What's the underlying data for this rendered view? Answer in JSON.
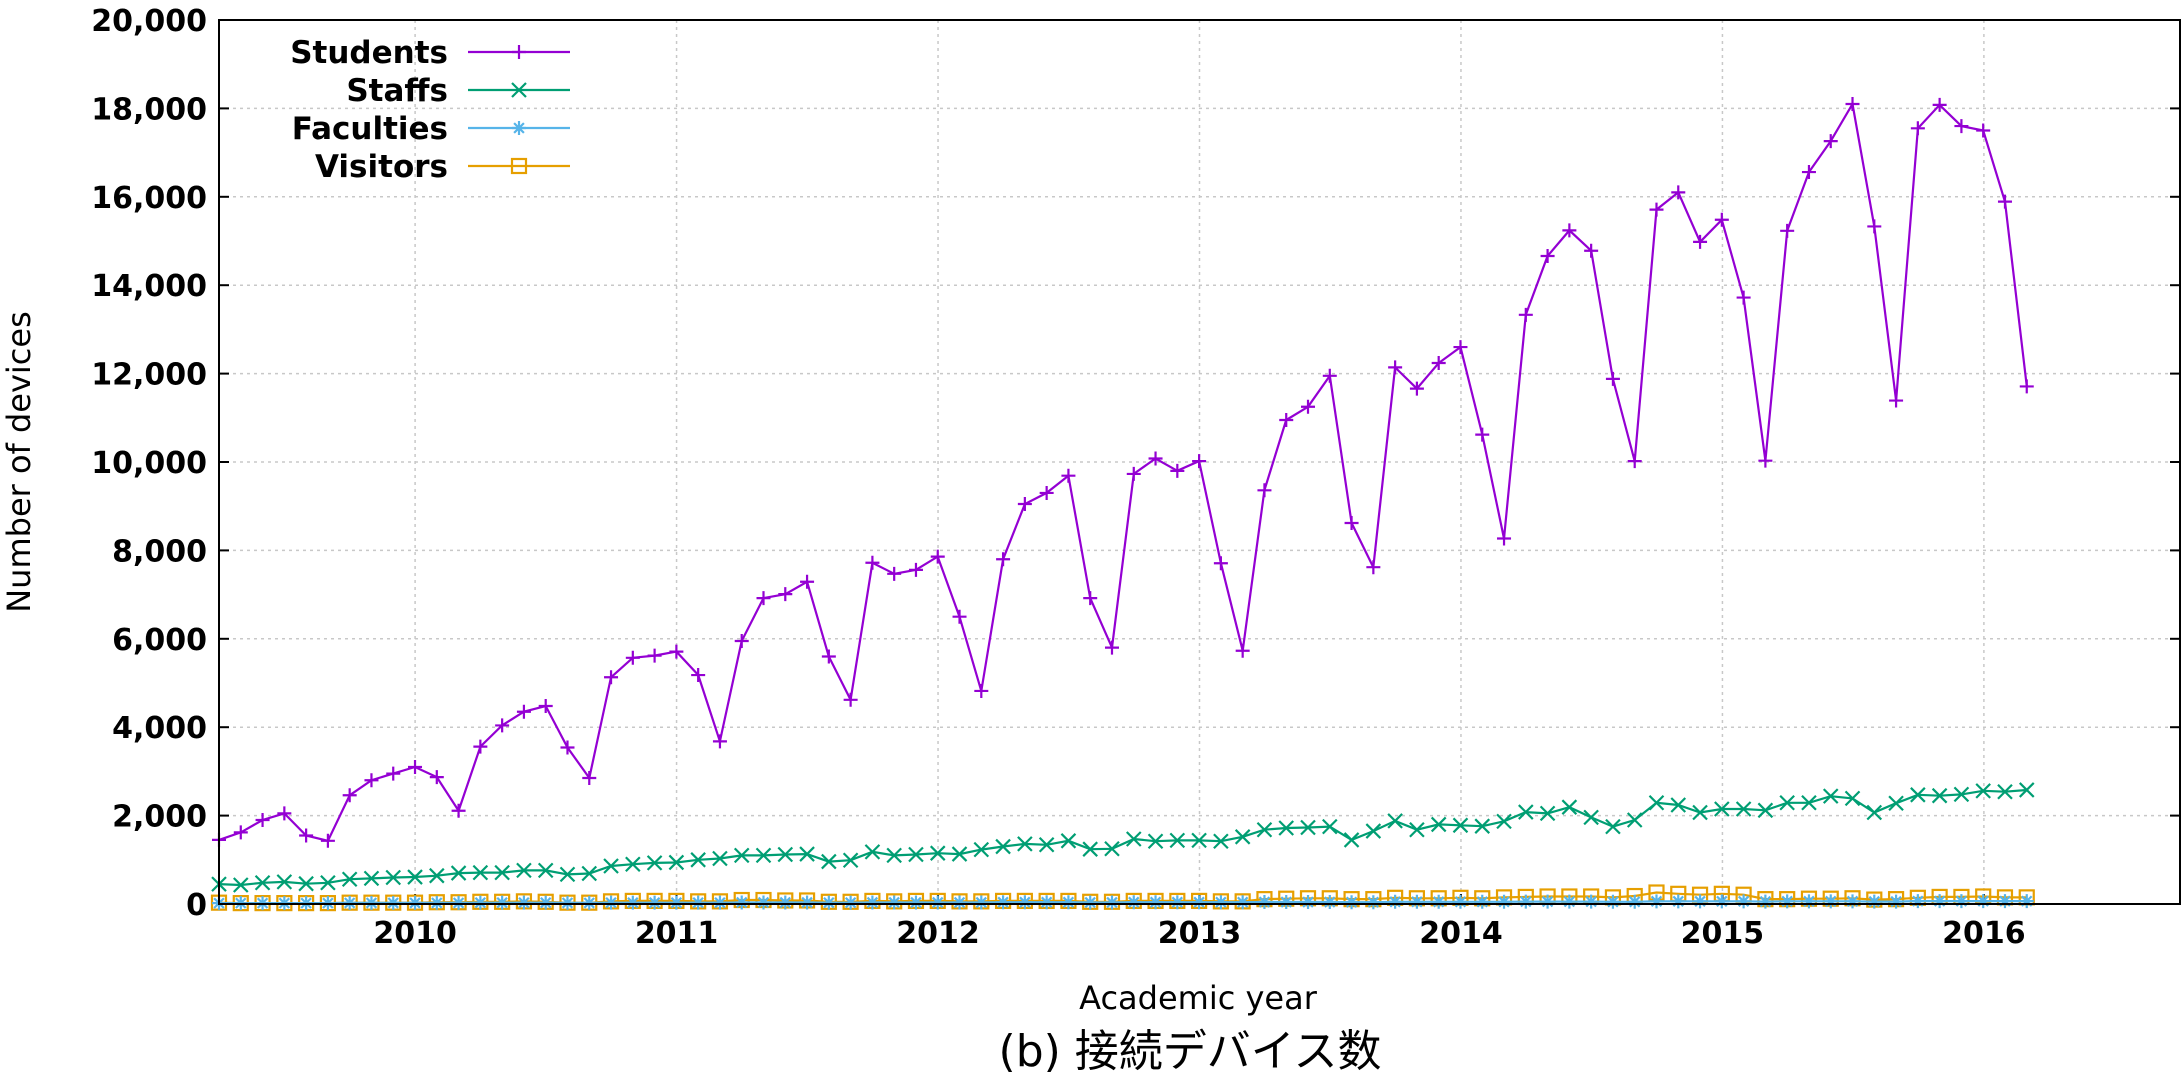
{
  "caption": "(b) 接続デバイス数",
  "chart_data": {
    "type": "line",
    "title": "",
    "xlabel": "Academic year",
    "ylabel": "Number of devices",
    "x_ticks": [
      "2010",
      "2011",
      "2012",
      "2013",
      "2014",
      "2015",
      "2016"
    ],
    "y_ticks": [
      "0",
      "2,000",
      "4,000",
      "6,000",
      "8,000",
      "10,000",
      "12,000",
      "14,000",
      "16,000",
      "18,000",
      "20,000"
    ],
    "xlim": [
      2009.25,
      2016.75
    ],
    "ylim": [
      0,
      20000
    ],
    "grid": true,
    "legend_position": "top-left",
    "x_start": 2009.25,
    "x_step": 0.0833,
    "series": [
      {
        "name": "Students",
        "color": "#9400d3",
        "marker": "plus",
        "values": [
          1450,
          1620,
          1900,
          2050,
          1550,
          1430,
          2460,
          2800,
          2950,
          3100,
          2870,
          2110,
          3560,
          4040,
          4350,
          4480,
          3540,
          2850,
          5130,
          5570,
          5620,
          5710,
          5180,
          3680,
          5950,
          6920,
          7010,
          7290,
          5600,
          4620,
          7720,
          7470,
          7560,
          7860,
          6500,
          4820,
          7800,
          9050,
          9300,
          9690,
          6920,
          5800,
          9730,
          10080,
          9800,
          10020,
          7710,
          5730,
          9360,
          10950,
          11250,
          11950,
          8620,
          7620,
          12140,
          11660,
          12240,
          12600,
          10620,
          8270,
          13330,
          14660,
          15240,
          14780,
          11880,
          10020,
          15710,
          16100,
          14980,
          15480,
          13720,
          10030,
          15230,
          16560,
          17260,
          18100,
          15330,
          11390,
          17550,
          18080,
          17600,
          17500,
          15890,
          11710
        ]
      },
      {
        "name": "Staffs",
        "color": "#009e73",
        "marker": "cross",
        "values": [
          450,
          430,
          480,
          500,
          460,
          480,
          560,
          580,
          600,
          610,
          640,
          700,
          710,
          710,
          760,
          760,
          670,
          690,
          860,
          900,
          930,
          940,
          1000,
          1030,
          1100,
          1100,
          1120,
          1130,
          960,
          990,
          1180,
          1100,
          1120,
          1150,
          1130,
          1230,
          1300,
          1360,
          1340,
          1430,
          1240,
          1250,
          1470,
          1420,
          1440,
          1440,
          1420,
          1520,
          1680,
          1720,
          1730,
          1750,
          1450,
          1650,
          1880,
          1680,
          1800,
          1780,
          1760,
          1870,
          2080,
          2050,
          2190,
          1960,
          1750,
          1900,
          2290,
          2240,
          2070,
          2150,
          2150,
          2120,
          2290,
          2290,
          2440,
          2390,
          2070,
          2280,
          2470,
          2450,
          2480,
          2560,
          2540,
          2580
        ]
      },
      {
        "name": "Faculties",
        "color": "#56b4e9",
        "marker": "star",
        "values": [
          20,
          20,
          20,
          20,
          20,
          20,
          25,
          25,
          25,
          25,
          25,
          25,
          30,
          30,
          30,
          30,
          25,
          25,
          30,
          30,
          30,
          30,
          30,
          30,
          35,
          35,
          35,
          35,
          30,
          30,
          35,
          35,
          35,
          35,
          35,
          35,
          40,
          40,
          40,
          40,
          35,
          35,
          40,
          40,
          40,
          40,
          40,
          40,
          45,
          45,
          45,
          45,
          40,
          40,
          50,
          50,
          50,
          50,
          50,
          50,
          55,
          55,
          55,
          55,
          50,
          50,
          60,
          60,
          60,
          60,
          60,
          55,
          60,
          60,
          60,
          60,
          55,
          55,
          65,
          65,
          65,
          65,
          65,
          65
        ]
      },
      {
        "name": "Visitors",
        "color": "#e69f00",
        "marker": "square",
        "values": [
          30,
          20,
          20,
          20,
          20,
          20,
          30,
          30,
          30,
          30,
          40,
          40,
          50,
          50,
          60,
          50,
          30,
          30,
          60,
          70,
          70,
          70,
          60,
          60,
          90,
          90,
          80,
          80,
          50,
          50,
          70,
          60,
          70,
          70,
          60,
          60,
          70,
          70,
          70,
          70,
          50,
          50,
          70,
          70,
          70,
          70,
          60,
          60,
          110,
          120,
          130,
          130,
          110,
          110,
          140,
          130,
          130,
          140,
          130,
          150,
          160,
          170,
          170,
          170,
          150,
          180,
          260,
          230,
          210,
          230,
          210,
          110,
          110,
          120,
          120,
          130,
          100,
          110,
          140,
          160,
          160,
          170,
          150,
          150
        ]
      }
    ]
  }
}
